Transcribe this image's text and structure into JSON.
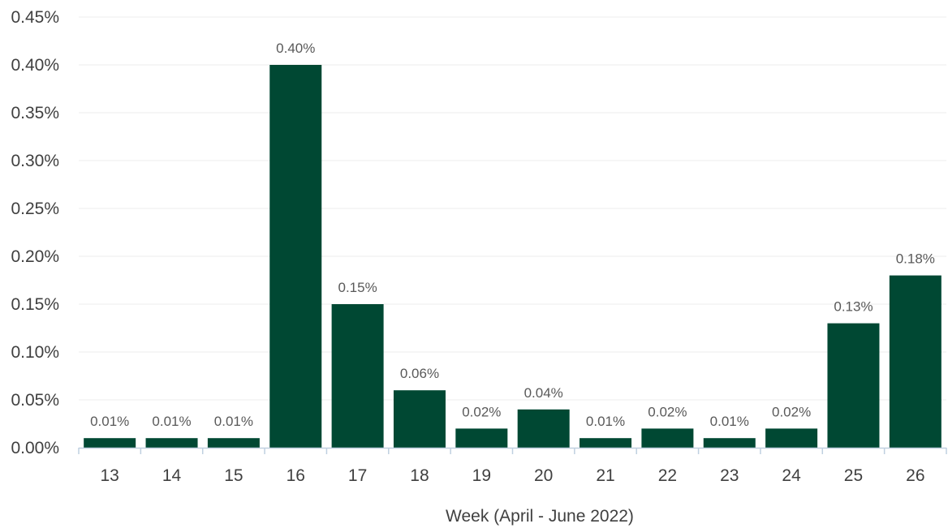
{
  "chart_data": {
    "type": "bar",
    "xlabel": "Week (April - June 2022)",
    "ylabel": "",
    "ylim": [
      0,
      0.45
    ],
    "ytick_values": [
      0,
      0.05,
      0.1,
      0.15,
      0.2,
      0.25,
      0.3,
      0.35,
      0.4,
      0.45
    ],
    "ytick_labels": [
      "0.00%",
      "0.05%",
      "0.10%",
      "0.15%",
      "0.20%",
      "0.25%",
      "0.30%",
      "0.35%",
      "0.40%",
      "0.45%"
    ],
    "categories": [
      "13",
      "14",
      "15",
      "16",
      "17",
      "18",
      "19",
      "20",
      "21",
      "22",
      "23",
      "24",
      "25",
      "26"
    ],
    "values": [
      0.01,
      0.01,
      0.01,
      0.4,
      0.15,
      0.06,
      0.02,
      0.04,
      0.01,
      0.02,
      0.01,
      0.02,
      0.13,
      0.18
    ],
    "data_labels": [
      "0.01%",
      "0.01%",
      "0.01%",
      "0.40%",
      "0.15%",
      "0.06%",
      "0.02%",
      "0.04%",
      "0.01%",
      "0.02%",
      "0.01%",
      "0.02%",
      "0.13%",
      "0.18%"
    ],
    "grid": true,
    "legend": "none",
    "colors": {
      "bar": "#004833",
      "grid": "#ececec",
      "axis": "#bfd0e0"
    }
  }
}
